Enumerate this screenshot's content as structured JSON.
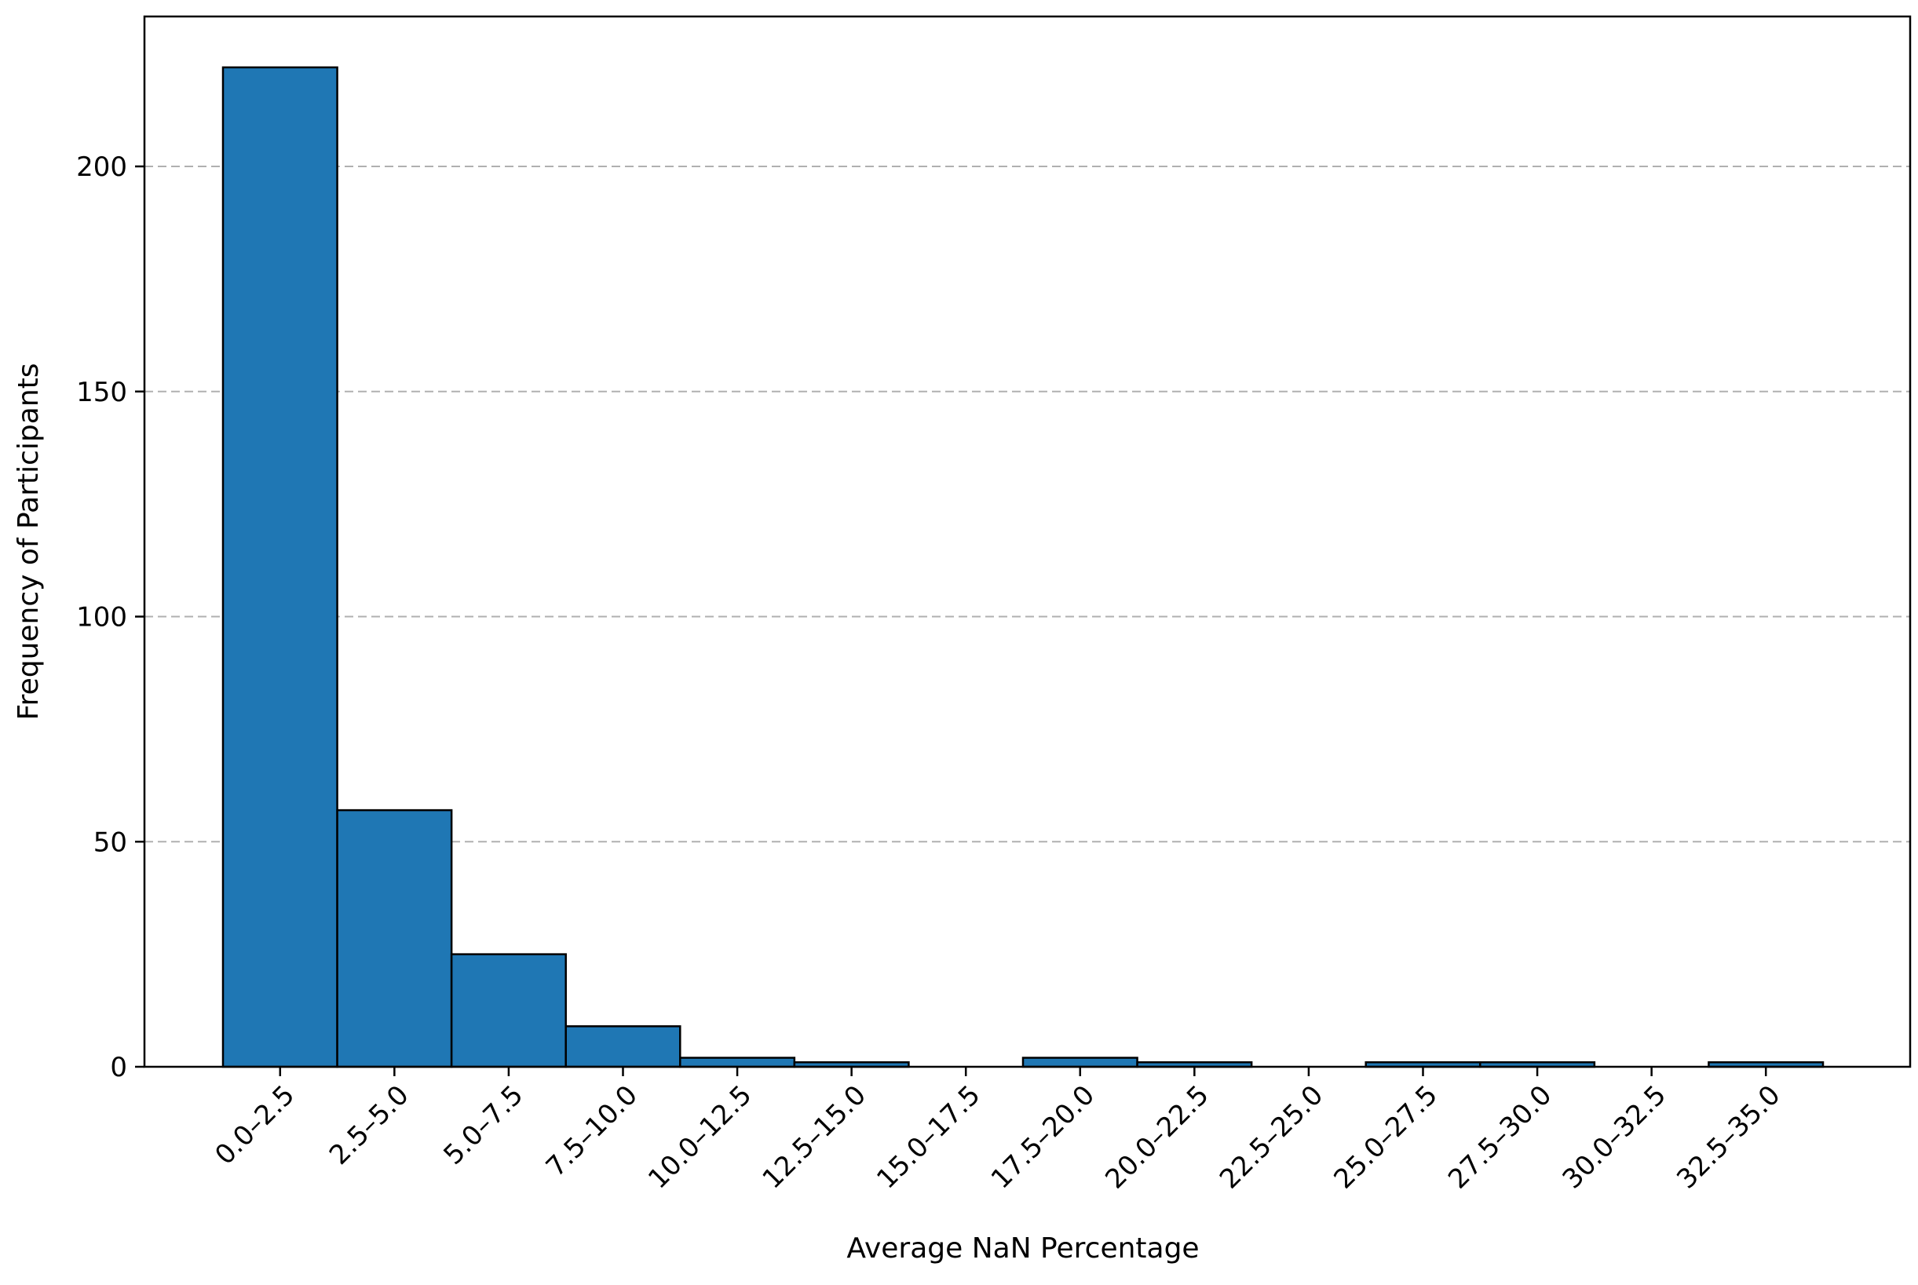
{
  "chart_data": {
    "type": "bar",
    "title": "",
    "xlabel": "Average NaN Percentage",
    "ylabel": "Frequency of Participants",
    "categories": [
      "0.0–2.5",
      "2.5–5.0",
      "5.0–7.5",
      "7.5–10.0",
      "10.0–12.5",
      "12.5–15.0",
      "15.0–17.5",
      "17.5–20.0",
      "20.0–22.5",
      "22.5–25.0",
      "25.0–27.5",
      "27.5–30.0",
      "30.0–32.5",
      "32.5–35.0"
    ],
    "values": [
      222,
      57,
      25,
      9,
      2,
      1,
      0,
      2,
      1,
      0,
      1,
      1,
      0,
      1
    ],
    "ylim": [
      0,
      233
    ],
    "yticks": [
      0,
      50,
      100,
      150,
      200
    ],
    "grid": "y-dashed",
    "bar_color": "#1f77b4",
    "edge_color": "#000000",
    "grid_color": "#b0b0b0"
  }
}
